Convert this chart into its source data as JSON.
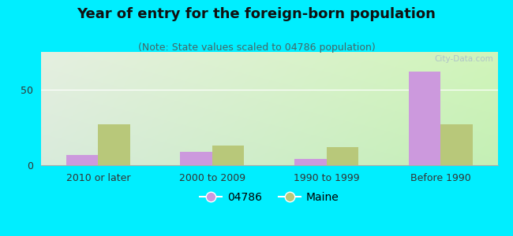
{
  "title": "Year of entry for the foreign-born population",
  "subtitle": "(Note: State values scaled to 04786 population)",
  "categories": [
    "2010 or later",
    "2000 to 2009",
    "1990 to 1999",
    "Before 1990"
  ],
  "values_04786": [
    7,
    9,
    4,
    62
  ],
  "values_maine": [
    27,
    13,
    12,
    27
  ],
  "color_04786": "#cc99dd",
  "color_maine": "#b8c87a",
  "ylim": [
    0,
    75
  ],
  "ytick_val": 50,
  "background_outer": "#00eeff",
  "bar_width": 0.28,
  "legend_label_04786": "04786",
  "legend_label_maine": "Maine",
  "title_fontsize": 13,
  "subtitle_fontsize": 9,
  "tick_fontsize": 9,
  "legend_fontsize": 10,
  "watermark": "City-Data.com"
}
